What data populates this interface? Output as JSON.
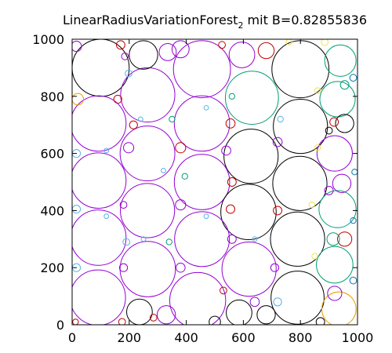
{
  "chart_data": {
    "type": "scatter",
    "title": "LinearRadiusVariationForest",
    "title_subscript": "2",
    "title_suffix": " mit B=0.82855836",
    "xlabel": "",
    "ylabel": "",
    "xlim": [
      0,
      1000
    ],
    "ylim": [
      0,
      1000
    ],
    "xticks": [
      0,
      200,
      400,
      600,
      800,
      1000
    ],
    "yticks": [
      0,
      200,
      400,
      600,
      800,
      1000
    ],
    "grid": false,
    "legend": "none",
    "colors": {
      "black": "#000000",
      "purple": "#9400d3",
      "teal": "#009e73",
      "orange": "#e69f00",
      "red": "#c00000",
      "blue": "#56b4e9",
      "yellow": "#f0e442",
      "navy": "#0072b2"
    },
    "circles": [
      {
        "x": 100,
        "y": 900,
        "r": 100,
        "color": "black"
      },
      {
        "x": 265,
        "y": 805,
        "r": 95,
        "color": "purple"
      },
      {
        "x": 455,
        "y": 895,
        "r": 100,
        "color": "purple"
      },
      {
        "x": 630,
        "y": 795,
        "r": 93,
        "color": "teal"
      },
      {
        "x": 800,
        "y": 895,
        "r": 100,
        "color": "black"
      },
      {
        "x": 250,
        "y": 945,
        "r": 50,
        "color": "black"
      },
      {
        "x": 92,
        "y": 705,
        "r": 97,
        "color": "purple"
      },
      {
        "x": 455,
        "y": 705,
        "r": 97,
        "color": "purple"
      },
      {
        "x": 800,
        "y": 695,
        "r": 95,
        "color": "black"
      },
      {
        "x": 264,
        "y": 600,
        "r": 96,
        "color": "purple"
      },
      {
        "x": 627,
        "y": 590,
        "r": 95,
        "color": "black"
      },
      {
        "x": 92,
        "y": 505,
        "r": 97,
        "color": "purple"
      },
      {
        "x": 455,
        "y": 500,
        "r": 97,
        "color": "purple"
      },
      {
        "x": 798,
        "y": 495,
        "r": 95,
        "color": "black"
      },
      {
        "x": 264,
        "y": 400,
        "r": 95,
        "color": "purple"
      },
      {
        "x": 618,
        "y": 395,
        "r": 97,
        "color": "black"
      },
      {
        "x": 92,
        "y": 305,
        "r": 97,
        "color": "purple"
      },
      {
        "x": 455,
        "y": 300,
        "r": 96,
        "color": "purple"
      },
      {
        "x": 790,
        "y": 300,
        "r": 95,
        "color": "black"
      },
      {
        "x": 265,
        "y": 195,
        "r": 97,
        "color": "purple"
      },
      {
        "x": 620,
        "y": 195,
        "r": 95,
        "color": "purple"
      },
      {
        "x": 90,
        "y": 95,
        "r": 97,
        "color": "purple"
      },
      {
        "x": 440,
        "y": 85,
        "r": 98,
        "color": "purple"
      },
      {
        "x": 790,
        "y": 95,
        "r": 93,
        "color": "black"
      },
      {
        "x": 236,
        "y": 45,
        "r": 45,
        "color": "black"
      },
      {
        "x": 585,
        "y": 42,
        "r": 45,
        "color": "black"
      },
      {
        "x": 940,
        "y": 925,
        "r": 55,
        "color": "teal"
      },
      {
        "x": 930,
        "y": 790,
        "r": 62,
        "color": "teal"
      },
      {
        "x": 920,
        "y": 600,
        "r": 62,
        "color": "purple"
      },
      {
        "x": 930,
        "y": 405,
        "r": 65,
        "color": "teal"
      },
      {
        "x": 920,
        "y": 210,
        "r": 64,
        "color": "teal"
      },
      {
        "x": 935,
        "y": 55,
        "r": 60,
        "color": "orange"
      },
      {
        "x": 595,
        "y": 945,
        "r": 45,
        "color": "purple"
      },
      {
        "x": 335,
        "y": 955,
        "r": 30,
        "color": "purple"
      },
      {
        "x": 380,
        "y": 965,
        "r": 30,
        "color": "purple"
      },
      {
        "x": 680,
        "y": 960,
        "r": 28,
        "color": "red"
      },
      {
        "x": 955,
        "y": 705,
        "r": 32,
        "color": "black"
      },
      {
        "x": 945,
        "y": 495,
        "r": 32,
        "color": "purple"
      },
      {
        "x": 955,
        "y": 300,
        "r": 25,
        "color": "red"
      },
      {
        "x": 915,
        "y": 300,
        "r": 22,
        "color": "teal"
      },
      {
        "x": 920,
        "y": 110,
        "r": 25,
        "color": "purple"
      },
      {
        "x": 330,
        "y": 35,
        "r": 32,
        "color": "purple"
      },
      {
        "x": 500,
        "y": 10,
        "r": 20,
        "color": "black"
      },
      {
        "x": 680,
        "y": 35,
        "r": 32,
        "color": "black"
      },
      {
        "x": 870,
        "y": 10,
        "r": 15,
        "color": "black"
      },
      {
        "x": 918,
        "y": 710,
        "r": 15,
        "color": "red"
      },
      {
        "x": 900,
        "y": 680,
        "r": 12,
        "color": "black"
      },
      {
        "x": 900,
        "y": 470,
        "r": 15,
        "color": "purple"
      },
      {
        "x": 955,
        "y": 840,
        "r": 15,
        "color": "teal"
      },
      {
        "x": 20,
        "y": 790,
        "r": 20,
        "color": "orange"
      },
      {
        "x": 15,
        "y": 975,
        "r": 18,
        "color": "purple"
      },
      {
        "x": 170,
        "y": 980,
        "r": 15,
        "color": "red"
      },
      {
        "x": 185,
        "y": 940,
        "r": 12,
        "color": "purple"
      },
      {
        "x": 198,
        "y": 880,
        "r": 12,
        "color": "blue"
      },
      {
        "x": 160,
        "y": 790,
        "r": 14,
        "color": "red"
      },
      {
        "x": 198,
        "y": 620,
        "r": 18,
        "color": "purple"
      },
      {
        "x": 215,
        "y": 700,
        "r": 14,
        "color": "red"
      },
      {
        "x": 380,
        "y": 620,
        "r": 18,
        "color": "red"
      },
      {
        "x": 380,
        "y": 420,
        "r": 18,
        "color": "purple"
      },
      {
        "x": 540,
        "y": 610,
        "r": 16,
        "color": "purple"
      },
      {
        "x": 555,
        "y": 705,
        "r": 16,
        "color": "red"
      },
      {
        "x": 560,
        "y": 500,
        "r": 15,
        "color": "red"
      },
      {
        "x": 555,
        "y": 405,
        "r": 15,
        "color": "red"
      },
      {
        "x": 560,
        "y": 300,
        "r": 15,
        "color": "purple"
      },
      {
        "x": 720,
        "y": 640,
        "r": 16,
        "color": "purple"
      },
      {
        "x": 720,
        "y": 400,
        "r": 15,
        "color": "red"
      },
      {
        "x": 710,
        "y": 200,
        "r": 14,
        "color": "purple"
      },
      {
        "x": 640,
        "y": 80,
        "r": 16,
        "color": "purple"
      },
      {
        "x": 720,
        "y": 80,
        "r": 14,
        "color": "blue"
      },
      {
        "x": 380,
        "y": 200,
        "r": 16,
        "color": "purple"
      },
      {
        "x": 180,
        "y": 200,
        "r": 14,
        "color": "purple"
      },
      {
        "x": 190,
        "y": 290,
        "r": 12,
        "color": "blue"
      },
      {
        "x": 15,
        "y": 600,
        "r": 14,
        "color": "blue"
      },
      {
        "x": 15,
        "y": 405,
        "r": 14,
        "color": "blue"
      },
      {
        "x": 15,
        "y": 200,
        "r": 14,
        "color": "blue"
      },
      {
        "x": 12,
        "y": 10,
        "r": 10,
        "color": "red"
      },
      {
        "x": 175,
        "y": 10,
        "r": 12,
        "color": "red"
      },
      {
        "x": 285,
        "y": 25,
        "r": 12,
        "color": "red"
      },
      {
        "x": 530,
        "y": 120,
        "r": 12,
        "color": "red"
      },
      {
        "x": 180,
        "y": 420,
        "r": 12,
        "color": "purple"
      },
      {
        "x": 340,
        "y": 290,
        "r": 10,
        "color": "teal"
      },
      {
        "x": 395,
        "y": 520,
        "r": 10,
        "color": "teal"
      },
      {
        "x": 350,
        "y": 720,
        "r": 10,
        "color": "teal"
      },
      {
        "x": 560,
        "y": 800,
        "r": 10,
        "color": "teal"
      },
      {
        "x": 525,
        "y": 980,
        "r": 12,
        "color": "red"
      },
      {
        "x": 760,
        "y": 990,
        "r": 10,
        "color": "yellow"
      },
      {
        "x": 885,
        "y": 990,
        "r": 12,
        "color": "yellow"
      },
      {
        "x": 985,
        "y": 865,
        "r": 12,
        "color": "navy"
      },
      {
        "x": 990,
        "y": 535,
        "r": 10,
        "color": "navy"
      },
      {
        "x": 985,
        "y": 365,
        "r": 10,
        "color": "navy"
      },
      {
        "x": 985,
        "y": 155,
        "r": 12,
        "color": "navy"
      },
      {
        "x": 840,
        "y": 420,
        "r": 10,
        "color": "yellow"
      },
      {
        "x": 850,
        "y": 240,
        "r": 10,
        "color": "yellow"
      },
      {
        "x": 860,
        "y": 620,
        "r": 10,
        "color": "yellow"
      },
      {
        "x": 860,
        "y": 820,
        "r": 10,
        "color": "yellow"
      },
      {
        "x": 730,
        "y": 720,
        "r": 10,
        "color": "blue"
      },
      {
        "x": 470,
        "y": 760,
        "r": 8,
        "color": "blue"
      },
      {
        "x": 240,
        "y": 720,
        "r": 8,
        "color": "blue"
      },
      {
        "x": 320,
        "y": 540,
        "r": 8,
        "color": "blue"
      },
      {
        "x": 470,
        "y": 380,
        "r": 8,
        "color": "blue"
      },
      {
        "x": 120,
        "y": 380,
        "r": 8,
        "color": "blue"
      },
      {
        "x": 120,
        "y": 610,
        "r": 8,
        "color": "blue"
      },
      {
        "x": 250,
        "y": 300,
        "r": 8,
        "color": "blue"
      },
      {
        "x": 640,
        "y": 300,
        "r": 8,
        "color": "blue"
      }
    ]
  }
}
